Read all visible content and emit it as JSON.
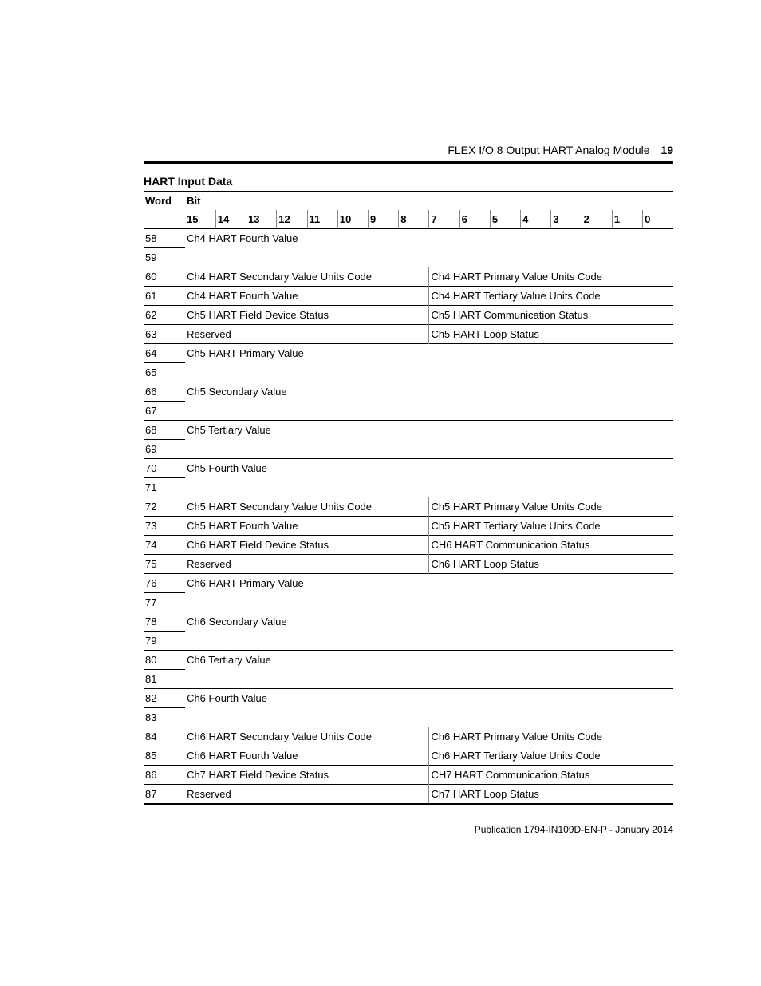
{
  "header": {
    "title": "FLEX I/O 8 Output HART Analog Module",
    "page_number": "19"
  },
  "caption": "HART Input Data",
  "table": {
    "word_header": "Word",
    "bit_header": "Bit",
    "bit_numbers": [
      "15",
      "14",
      "13",
      "12",
      "11",
      "10",
      "9",
      "8",
      "7",
      "6",
      "5",
      "4",
      "3",
      "2",
      "1",
      "0"
    ],
    "rows": [
      {
        "word": "58",
        "type": "full",
        "text": "Ch4 HART Fourth Value",
        "continues": true
      },
      {
        "word": "59",
        "type": "cont"
      },
      {
        "word": "60",
        "type": "split",
        "left": "Ch4 HART Secondary Value Units Code",
        "right": "Ch4 HART Primary Value Units Code"
      },
      {
        "word": "61",
        "type": "split",
        "left": "Ch4 HART Fourth Value",
        "right": "Ch4 HART Tertiary Value Units Code"
      },
      {
        "word": "62",
        "type": "split",
        "left": "Ch5 HART Field Device Status",
        "right": "Ch5 HART Communication Status"
      },
      {
        "word": "63",
        "type": "split",
        "left": "Reserved",
        "right": "Ch5 HART Loop Status"
      },
      {
        "word": "64",
        "type": "full",
        "text": "Ch5 HART Primary Value",
        "continues": true
      },
      {
        "word": "65",
        "type": "cont"
      },
      {
        "word": "66",
        "type": "full",
        "text": "Ch5 Secondary Value",
        "continues": true
      },
      {
        "word": "67",
        "type": "cont"
      },
      {
        "word": "68",
        "type": "full",
        "text": "Ch5 Tertiary Value",
        "continues": true
      },
      {
        "word": "69",
        "type": "cont"
      },
      {
        "word": "70",
        "type": "full",
        "text": "Ch5 Fourth Value",
        "continues": true
      },
      {
        "word": "71",
        "type": "cont"
      },
      {
        "word": "72",
        "type": "split",
        "left": "Ch5 HART Secondary Value Units Code",
        "right": "Ch5 HART Primary Value Units Code"
      },
      {
        "word": "73",
        "type": "split",
        "left": "Ch5 HART Fourth Value",
        "right": "Ch5 HART Tertiary Value Units Code"
      },
      {
        "word": "74",
        "type": "split",
        "left": "Ch6 HART Field Device Status",
        "right": "CH6 HART Communication Status"
      },
      {
        "word": "75",
        "type": "split",
        "left": "Reserved",
        "right": "Ch6 HART Loop Status"
      },
      {
        "word": "76",
        "type": "full",
        "text": "Ch6 HART Primary Value",
        "continues": true
      },
      {
        "word": "77",
        "type": "cont"
      },
      {
        "word": "78",
        "type": "full",
        "text": "Ch6 Secondary Value",
        "continues": true
      },
      {
        "word": "79",
        "type": "cont"
      },
      {
        "word": "80",
        "type": "full",
        "text": "Ch6 Tertiary Value",
        "continues": true
      },
      {
        "word": "81",
        "type": "cont"
      },
      {
        "word": "82",
        "type": "full",
        "text": "Ch6 Fourth Value",
        "continues": true
      },
      {
        "word": "83",
        "type": "cont"
      },
      {
        "word": "84",
        "type": "split",
        "left": "Ch6 HART Secondary Value Units Code",
        "right": "Ch6 HART Primary Value Units Code"
      },
      {
        "word": "85",
        "type": "split",
        "left": "Ch6 HART Fourth Value",
        "right": "Ch6 HART Tertiary Value Units Code"
      },
      {
        "word": "86",
        "type": "split",
        "left": "Ch7 HART Field Device Status",
        "right": "CH7 HART Communication Status"
      },
      {
        "word": "87",
        "type": "split",
        "left": "Reserved",
        "right": "Ch7 HART Loop Status",
        "last": true
      }
    ]
  },
  "footer": "Publication  1794-IN109D-EN-P - January 2014"
}
